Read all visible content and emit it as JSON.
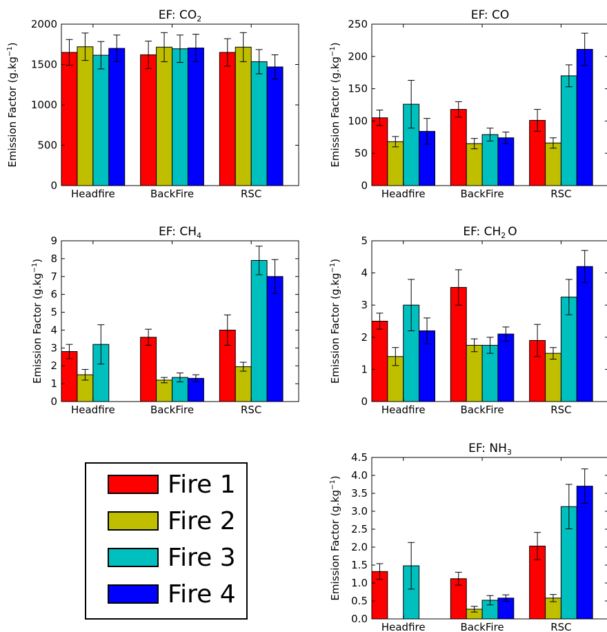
{
  "series_colors": [
    "#ff0000",
    "#bfbf00",
    "#00bfbf",
    "#0000ff"
  ],
  "legend": {
    "items": [
      "Fire 1",
      "Fire 2",
      "Fire 3",
      "Fire 4"
    ]
  },
  "chart_data": [
    {
      "type": "bar",
      "title": "EF: CO",
      "title_sub": "2",
      "ylabel": "Emission Factor (g.kg",
      "ylabel_sup": "−1",
      "ylabel_close": ")",
      "categories": [
        "Headfire",
        "BackFire",
        "RSC"
      ],
      "ylim": [
        0,
        2000
      ],
      "yticks": [
        "0",
        "500",
        "1000",
        "1500",
        "2000"
      ],
      "ytick_values": [
        0,
        500,
        1000,
        1500,
        2000
      ],
      "series": [
        {
          "name": "Fire 1",
          "values": [
            1650,
            1620,
            1650
          ],
          "errors": [
            160,
            170,
            170
          ]
        },
        {
          "name": "Fire 2",
          "values": [
            1720,
            1715,
            1715
          ],
          "errors": [
            170,
            180,
            180
          ]
        },
        {
          "name": "Fire 3",
          "values": [
            1615,
            1695,
            1535
          ],
          "errors": [
            170,
            170,
            150
          ]
        },
        {
          "name": "Fire 4",
          "values": [
            1700,
            1705,
            1470
          ],
          "errors": [
            165,
            170,
            150
          ]
        }
      ]
    },
    {
      "type": "bar",
      "title": "EF: CO",
      "title_sub": "",
      "ylabel": "Emission Factor (g.kg",
      "ylabel_sup": "−1",
      "ylabel_close": ")",
      "categories": [
        "Headfire",
        "BackFire",
        "RSC"
      ],
      "ylim": [
        0,
        250
      ],
      "yticks": [
        "0",
        "50",
        "100",
        "150",
        "200",
        "250"
      ],
      "ytick_values": [
        0,
        50,
        100,
        150,
        200,
        250
      ],
      "series": [
        {
          "name": "Fire 1",
          "values": [
            105,
            118,
            101
          ],
          "errors": [
            12,
            12,
            17
          ]
        },
        {
          "name": "Fire 2",
          "values": [
            68,
            65,
            66
          ],
          "errors": [
            8,
            8,
            8
          ]
        },
        {
          "name": "Fire 3",
          "values": [
            126,
            79,
            170
          ],
          "errors": [
            37,
            10,
            17
          ]
        },
        {
          "name": "Fire 4",
          "values": [
            84,
            74,
            211
          ],
          "errors": [
            20,
            9,
            25
          ]
        }
      ]
    },
    {
      "type": "bar",
      "title": "EF: CH",
      "title_sub": "4",
      "ylabel": "Emission Factor (g.kg",
      "ylabel_sup": "−1",
      "ylabel_close": ")",
      "categories": [
        "Headfire",
        "BackFire",
        "RSC"
      ],
      "ylim": [
        0,
        9
      ],
      "yticks": [
        "0",
        "1",
        "2",
        "3",
        "4",
        "5",
        "6",
        "7",
        "8",
        "9"
      ],
      "ytick_values": [
        0,
        1,
        2,
        3,
        4,
        5,
        6,
        7,
        8,
        9
      ],
      "series": [
        {
          "name": "Fire 1",
          "values": [
            2.8,
            3.6,
            4.0
          ],
          "errors": [
            0.4,
            0.45,
            0.85
          ]
        },
        {
          "name": "Fire 2",
          "values": [
            1.5,
            1.2,
            1.95
          ],
          "errors": [
            0.3,
            0.15,
            0.25
          ]
        },
        {
          "name": "Fire 3",
          "values": [
            3.2,
            1.35,
            7.9
          ],
          "errors": [
            1.1,
            0.25,
            0.8
          ]
        },
        {
          "name": "Fire 4",
          "values": [
            null,
            1.3,
            7.0
          ],
          "errors": [
            null,
            0.2,
            0.95
          ]
        }
      ]
    },
    {
      "type": "bar",
      "title": "EF: CH",
      "title_sub": "2",
      "title_tail": "O",
      "ylabel": "Emission Factor (g.kg",
      "ylabel_sup": "−1",
      "ylabel_close": ")",
      "categories": [
        "Headfire",
        "BackFire",
        "RSC"
      ],
      "ylim": [
        0,
        5
      ],
      "yticks": [
        "0",
        "1",
        "2",
        "3",
        "4",
        "5"
      ],
      "ytick_values": [
        0,
        1,
        2,
        3,
        4,
        5
      ],
      "series": [
        {
          "name": "Fire 1",
          "values": [
            2.5,
            3.55,
            1.9
          ],
          "errors": [
            0.25,
            0.55,
            0.5
          ]
        },
        {
          "name": "Fire 2",
          "values": [
            1.4,
            1.75,
            1.5
          ],
          "errors": [
            0.28,
            0.2,
            0.18
          ]
        },
        {
          "name": "Fire 3",
          "values": [
            3.0,
            1.75,
            3.25
          ],
          "errors": [
            0.8,
            0.25,
            0.55
          ]
        },
        {
          "name": "Fire 4",
          "values": [
            2.2,
            2.1,
            4.2
          ],
          "errors": [
            0.4,
            0.22,
            0.5
          ]
        }
      ]
    },
    {
      "type": "bar",
      "title": "EF: NH",
      "title_sub": "3",
      "ylabel": "Emission Factor (g.kg",
      "ylabel_sup": "−1",
      "ylabel_close": ")",
      "categories": [
        "Headfire",
        "BackFire",
        "RSC"
      ],
      "ylim": [
        0,
        4.5
      ],
      "yticks": [
        "0.0",
        "0.5",
        "1.0",
        "1.5",
        "2.0",
        "2.5",
        "3.0",
        "3.5",
        "4.0",
        "4.5"
      ],
      "ytick_values": [
        0,
        0.5,
        1.0,
        1.5,
        2.0,
        2.5,
        3.0,
        3.5,
        4.0,
        4.5
      ],
      "series": [
        {
          "name": "Fire 1",
          "values": [
            1.32,
            1.12,
            2.03
          ],
          "errors": [
            0.22,
            0.18,
            0.38
          ]
        },
        {
          "name": "Fire 2",
          "values": [
            null,
            0.27,
            0.58
          ],
          "errors": [
            null,
            0.08,
            0.1
          ]
        },
        {
          "name": "Fire 3",
          "values": [
            1.48,
            0.52,
            3.13
          ],
          "errors": [
            0.65,
            0.13,
            0.62
          ]
        },
        {
          "name": "Fire 4",
          "values": [
            null,
            0.58,
            3.7
          ],
          "errors": [
            null,
            0.09,
            0.48
          ]
        }
      ]
    }
  ]
}
